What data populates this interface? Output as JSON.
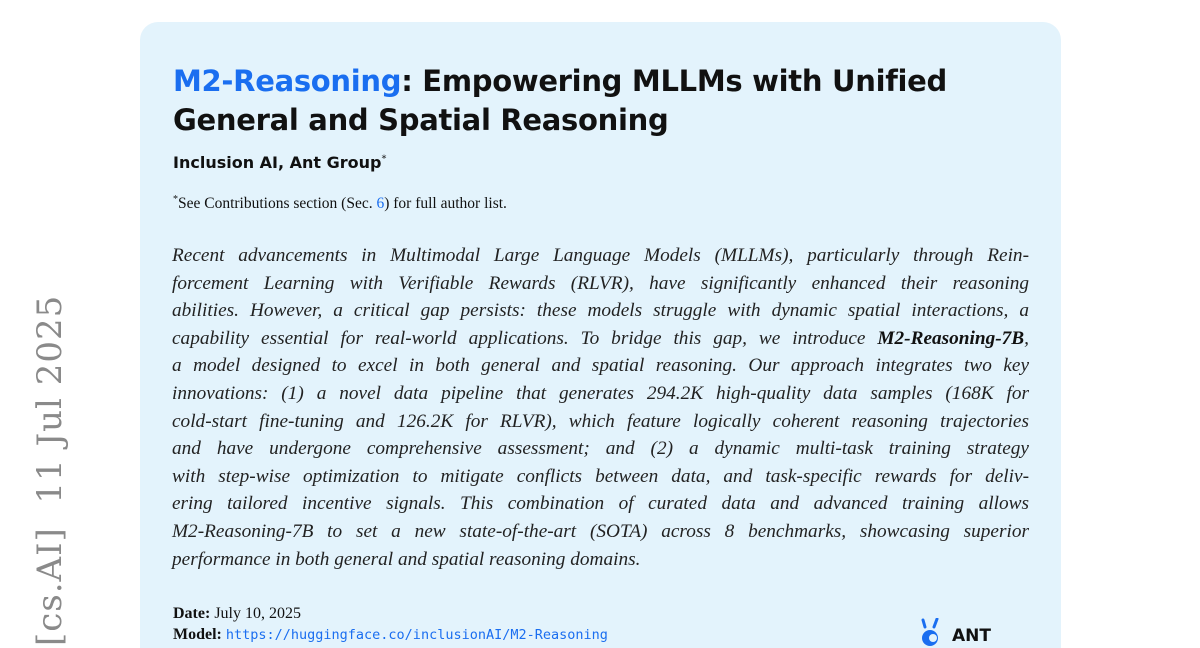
{
  "side_stamp": "[cs.AI]  11 Jul 2025",
  "title": {
    "highlight": "M2-Reasoning",
    "rest_line1": ": Empowering MLLMs with Unified",
    "line2": "General and Spatial Reasoning"
  },
  "authors": {
    "text": "Inclusion AI, Ant Group",
    "mark": "*"
  },
  "note": {
    "mark": "*",
    "before": "See Contributions section (Sec. ",
    "ref": "6",
    "after": ") for full author list."
  },
  "abstract": {
    "lines": [
      "Recent advancements in Multimodal Large Language Models (MLLMs), particularly through Rein-",
      "forcement Learning with Verifiable Rewards (RLVR), have significantly enhanced their reasoning",
      "abilities. However, a critical gap persists: these models struggle with dynamic spatial interactions, a",
      "",
      "a model designed to excel in both general and spatial reasoning. Our approach integrates two key",
      "innovations: (1) a novel data pipeline that generates 294.2K high-quality data samples (168K for",
      "cold-start fine-tuning and 126.2K for RLVR), which feature logically coherent reasoning trajectories",
      "and have undergone comprehensive assessment; and (2) a dynamic multi-task training strategy",
      "with step-wise optimization to mitigate conflicts between data, and task-specific rewards for deliv-",
      "ering tailored incentive signals. This combination of curated data and advanced training allows",
      "M2-Reasoning-7B to set a new state-of-the-art (SOTA) across 8 benchmarks, showcasing superior",
      "performance in both general and spatial reasoning domains."
    ],
    "line4_before": "capability essential for real-world applications. To bridge this gap, we introduce ",
    "line4_bold": "M2-Reasoning-7B",
    "line4_after": ","
  },
  "meta": {
    "date_label": "Date:",
    "date_value": "July 10, 2025",
    "model_label": "Model:",
    "model_url": "https://huggingface.co/inclusionAI/M2-Reasoning"
  },
  "logo": {
    "text": "ANT",
    "color": "#1a6ef0"
  },
  "colors": {
    "accent": "#1a6ef0",
    "card_bg": "#e3f3fc"
  }
}
